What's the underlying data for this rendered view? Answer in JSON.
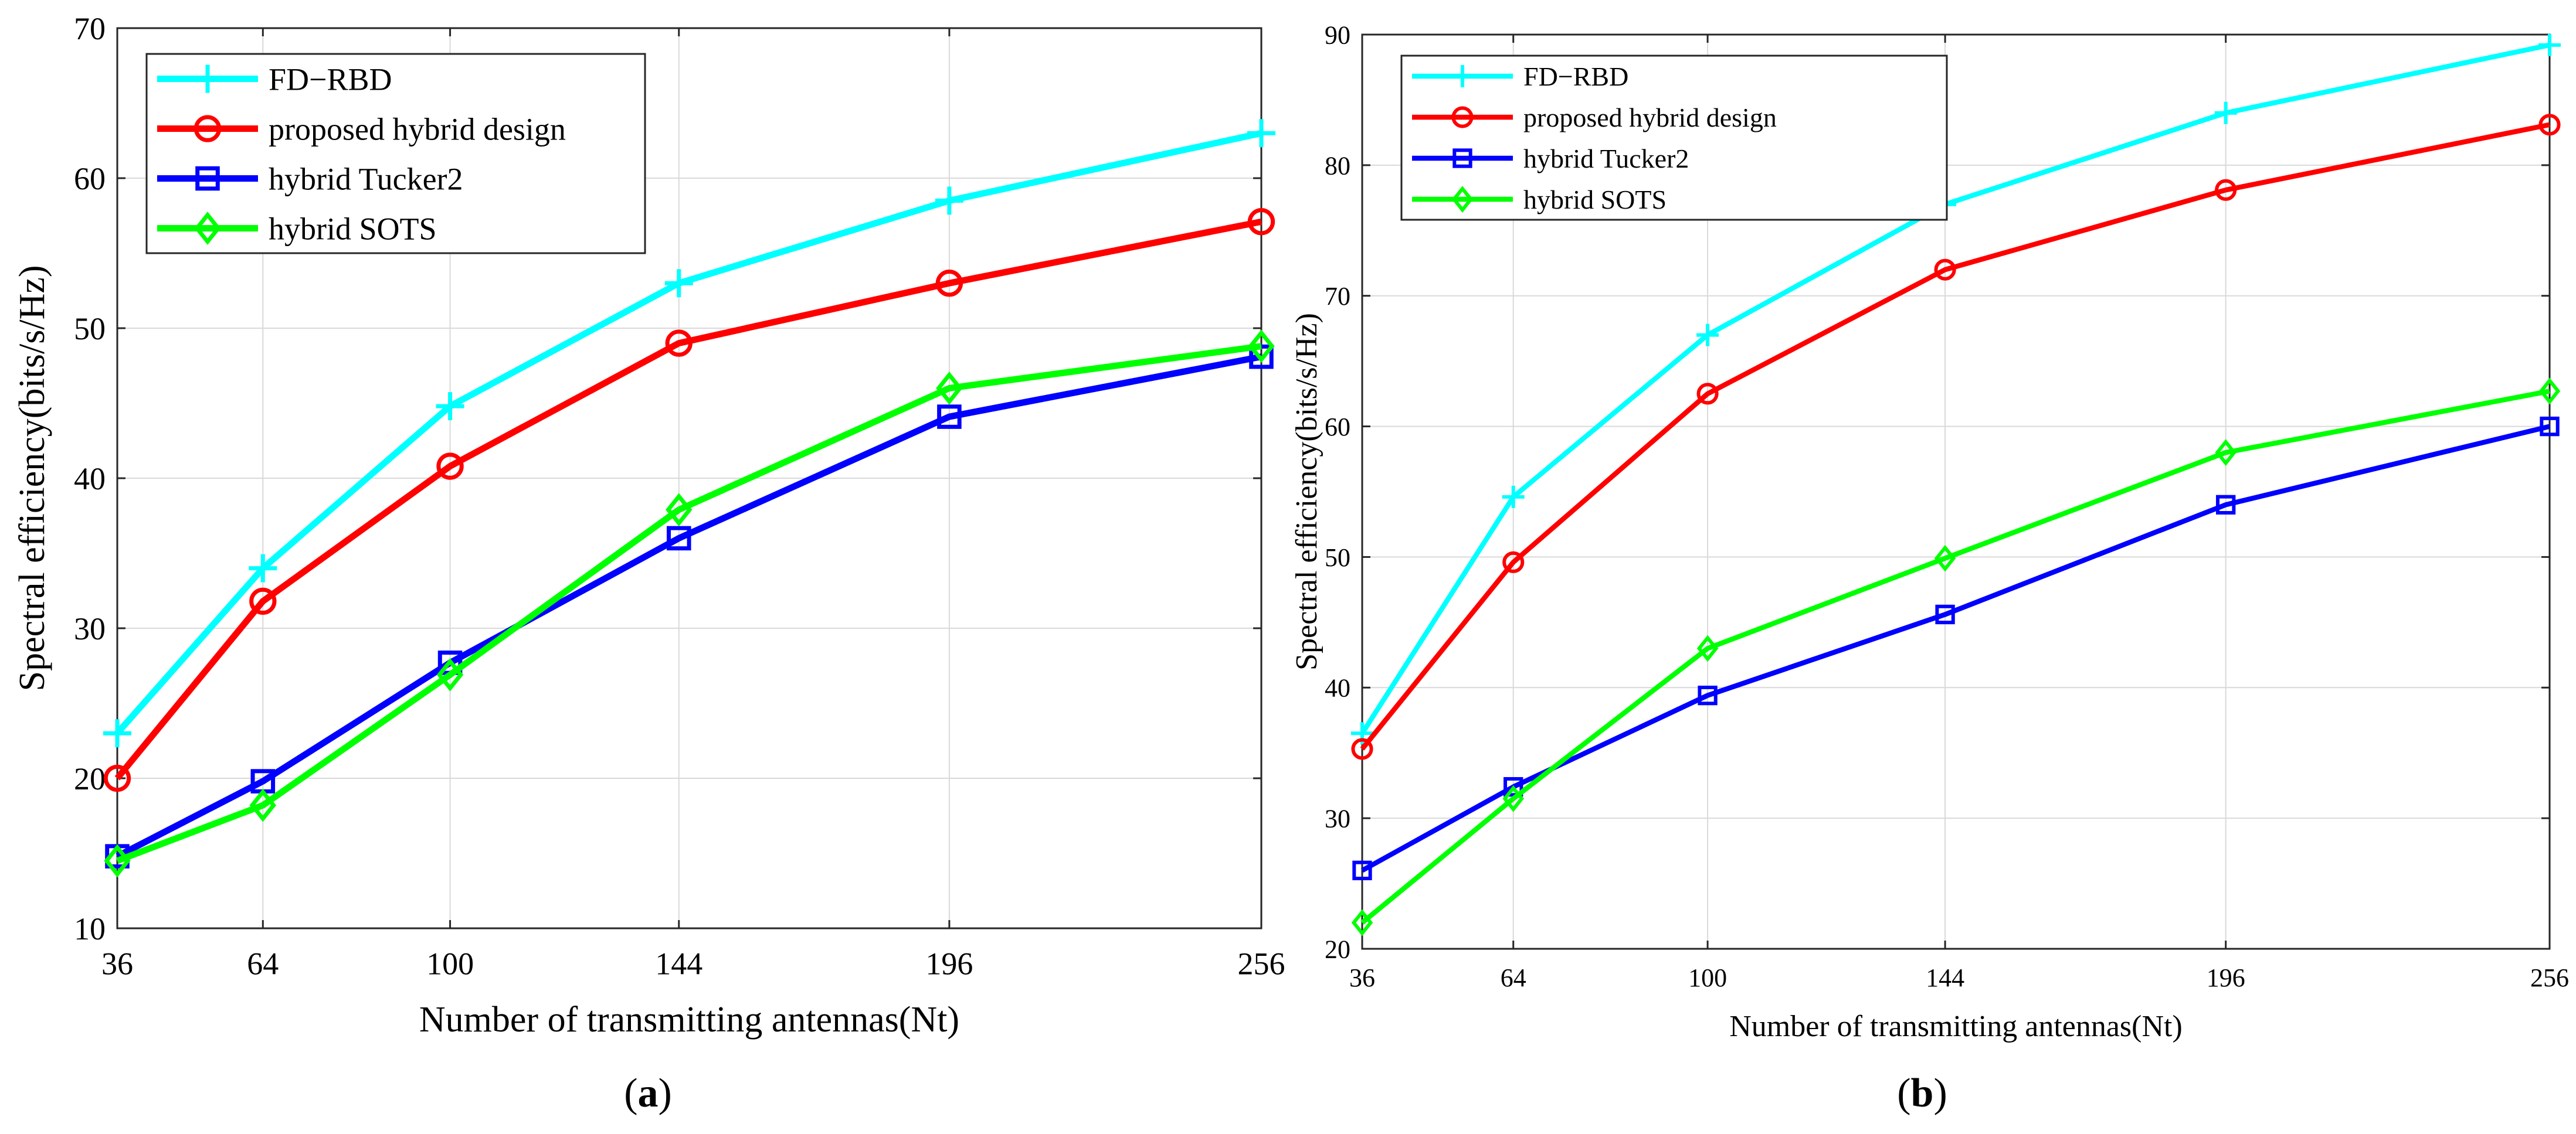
{
  "chart_data": [
    {
      "type": "line",
      "panel_label": "a",
      "xlabel": "Number of transmitting antennas(Nt)",
      "ylabel": "Spectral efficiency(bits/s/Hz)",
      "x": [
        36,
        64,
        100,
        144,
        196,
        256
      ],
      "xticks": [
        "36",
        "64",
        "100",
        "144",
        "196",
        "256"
      ],
      "xlim": [
        36,
        256
      ],
      "ylim": [
        10,
        70
      ],
      "yticks": [
        10,
        20,
        30,
        40,
        50,
        60,
        70
      ],
      "grid": true,
      "legend_position": "top-left",
      "series": [
        {
          "name": "FD−RBD",
          "color": "#00FFFF",
          "marker": "plus",
          "values": [
            23,
            34,
            44.8,
            53,
            58.5,
            63
          ]
        },
        {
          "name": "proposed hybrid design",
          "color": "#FF0000",
          "marker": "circle",
          "values": [
            20,
            31.8,
            40.8,
            49,
            53,
            57.1
          ]
        },
        {
          "name": "hybrid Tucker2",
          "color": "#0000FF",
          "marker": "square",
          "values": [
            14.8,
            19.8,
            27.7,
            36,
            44.1,
            48.1
          ]
        },
        {
          "name": "hybrid SOTS",
          "color": "#00FF00",
          "marker": "diamond",
          "values": [
            14.5,
            18.2,
            26.9,
            37.9,
            46,
            48.8
          ]
        }
      ]
    },
    {
      "type": "line",
      "panel_label": "b",
      "xlabel": "Number of transmitting antennas(Nt)",
      "ylabel": "Spectral efficiency(bits/s/Hz)",
      "x": [
        36,
        64,
        100,
        144,
        196,
        256
      ],
      "xticks": [
        "36",
        "64",
        "100",
        "144",
        "196",
        "256"
      ],
      "xlim": [
        36,
        256
      ],
      "ylim": [
        20,
        90
      ],
      "yticks": [
        20,
        30,
        40,
        50,
        60,
        70,
        80,
        90
      ],
      "grid": true,
      "legend_position": "top-left",
      "series": [
        {
          "name": "FD−RBD",
          "color": "#00FFFF",
          "marker": "plus",
          "values": [
            36.5,
            54.6,
            67,
            77,
            84,
            89.2
          ]
        },
        {
          "name": "proposed hybrid design",
          "color": "#FF0000",
          "marker": "circle",
          "values": [
            35.3,
            49.6,
            62.5,
            72,
            78.1,
            83.1
          ]
        },
        {
          "name": "hybrid Tucker2",
          "color": "#0000FF",
          "marker": "square",
          "values": [
            26,
            32.4,
            39.4,
            45.6,
            54,
            60
          ]
        },
        {
          "name": "hybrid SOTS",
          "color": "#00FF00",
          "marker": "diamond",
          "values": [
            22,
            31.5,
            43,
            49.9,
            58,
            62.7
          ]
        }
      ]
    }
  ]
}
